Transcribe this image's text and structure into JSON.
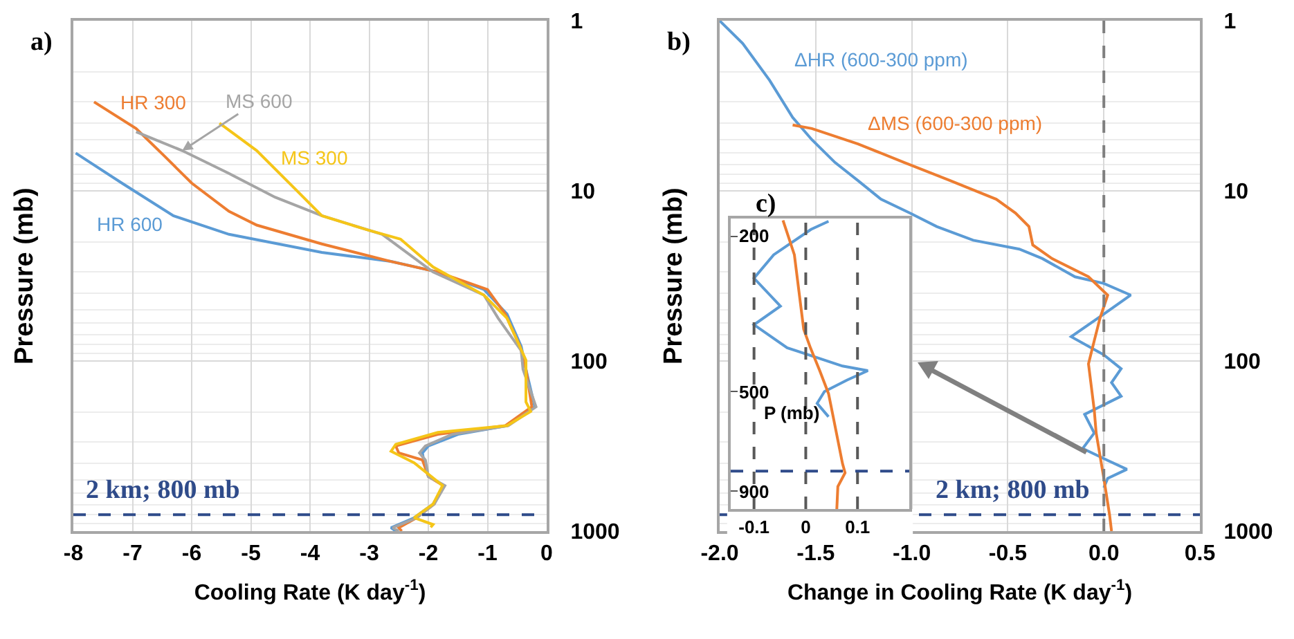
{
  "chart_data": [
    {
      "type": "line",
      "title": "a)",
      "xlabel": "Cooling Rate (K day$^{-1}$)",
      "ylabel": "Pressure (mb)",
      "orientation": "horizontal",
      "log": "y",
      "xlim": [
        -8,
        0
      ],
      "xticks": [
        -8,
        -7,
        -6,
        -5,
        -4,
        -3,
        -2,
        -1,
        0
      ],
      "ylim": [
        1000,
        1
      ],
      "yticks": [
        1,
        10,
        100,
        1000
      ],
      "grid": true,
      "ref_lines": [
        {
          "axis": "y",
          "value": 800,
          "label": "2 km; 800 mb",
          "color": "#2f4b8a",
          "line_style": "dashed"
        }
      ],
      "series": [
        {
          "name": "HR 600",
          "color": "#5b9bd5",
          "x": [
            6,
            9,
            14,
            18,
            23,
            26,
            30,
            38,
            53,
            82,
            112,
            186,
            240,
            270,
            316,
            347,
            382,
            477,
            540,
            693,
            835,
            955,
            1000
          ],
          "values": [
            -7.96,
            -7.18,
            -6.31,
            -5.37,
            -3.8,
            -2.63,
            -1.84,
            -1.06,
            -0.67,
            -0.43,
            -0.35,
            -0.2,
            -0.67,
            -1.5,
            -2.0,
            -2.1,
            -2.08,
            -2.0,
            -1.73,
            -1.92,
            -2.24,
            -2.63,
            -2.55
          ]
        },
        {
          "name": "HR 300",
          "color": "#ed7d31",
          "x": [
            3.0,
            4.3,
            6.2,
            9.0,
            13.2,
            15.9,
            20.5,
            26,
            30,
            38,
            53,
            82,
            112,
            186,
            240,
            270,
            316,
            347,
            382,
            477,
            540,
            693,
            835,
            955,
            1000
          ],
          "values": [
            -7.65,
            -6.94,
            -6.47,
            -6.0,
            -5.37,
            -4.9,
            -3.8,
            -2.63,
            -1.84,
            -1.0,
            -0.7,
            -0.45,
            -0.35,
            -0.25,
            -0.7,
            -1.84,
            -2.55,
            -2.5,
            -2.1,
            -2.0,
            -1.75,
            -1.9,
            -2.2,
            -2.5,
            -2.45
          ]
        },
        {
          "name": "MS 600",
          "color": "#a5a5a5",
          "x": [
            4.5,
            5.8,
            7.9,
            10.9,
            14,
            18,
            30,
            41,
            56,
            87,
            112,
            186,
            240,
            270,
            316,
            347,
            382,
            477,
            540,
            693,
            835,
            955,
            1000
          ],
          "values": [
            -6.94,
            -6.16,
            -5.37,
            -4.59,
            -3.8,
            -2.78,
            -1.92,
            -1.06,
            -0.82,
            -0.43,
            -0.4,
            -0.18,
            -0.65,
            -1.6,
            -2.05,
            -2.15,
            -2.05,
            -2.0,
            -1.72,
            -1.9,
            -2.2,
            -2.6,
            -2.5
          ]
        },
        {
          "name": "MS 300",
          "color": "#f5c518",
          "x": [
            4.0,
            5.8,
            9.6,
            14,
            17,
            19.2,
            28,
            41,
            56,
            99,
            174,
            198,
            240,
            263,
            309,
            339,
            397,
            540,
            693,
            835,
            915,
            950
          ],
          "values": [
            -5.53,
            -4.9,
            -4.27,
            -3.8,
            -3.02,
            -2.47,
            -1.92,
            -1.06,
            -0.67,
            -0.35,
            -0.35,
            -0.27,
            -0.67,
            -1.84,
            -2.55,
            -2.63,
            -2.24,
            -1.76,
            -1.92,
            -2.24,
            -1.92,
            -1.96
          ]
        }
      ]
    },
    {
      "type": "line",
      "title": "b)",
      "xlabel": "Change in Cooling Rate (K day$^{-1}$)",
      "ylabel": "Pressure (mb)",
      "orientation": "horizontal",
      "log": "y",
      "xlim": [
        -2.0,
        0.5
      ],
      "xticks": [
        {
          "value": -2,
          "label": "-2.0"
        },
        -1.5,
        {
          "value": -1,
          "label": "-1.0"
        },
        -0.5,
        {
          "value": 0,
          "label": "0.0"
        },
        0.5
      ],
      "ylim": [
        1000,
        1
      ],
      "yticks": [
        1,
        10,
        100,
        1000
      ],
      "grid": true,
      "ref_lines": [
        {
          "axis": "x",
          "value": 0,
          "color": "#7f7f7f",
          "line_style": "dashed"
        },
        {
          "axis": "y",
          "value": 800,
          "label": "2 km; 800 mb",
          "color": "#2f4b8a",
          "line_style": "dashed"
        }
      ],
      "series": [
        {
          "name": "ΔHR (600-300 ppm)",
          "color": "#5b9bd5",
          "x": [
            1,
            1.36,
            2.24,
            3.7,
            5.0,
            6.8,
            8.7,
            11.2,
            13.5,
            16.2,
            19.5,
            22,
            25,
            32,
            35,
            41,
            53,
            72,
            92,
            111,
            134,
            161,
            206,
            265,
            327,
            384,
            433,
            490,
            556
          ],
          "values": [
            -2.0,
            -1.88,
            -1.74,
            -1.62,
            -1.52,
            -1.4,
            -1.28,
            -1.16,
            -1.01,
            -0.87,
            -0.68,
            -0.44,
            -0.32,
            -0.15,
            0.0,
            0.14,
            0.0,
            -0.17,
            0.0,
            0.09,
            0.04,
            0.09,
            -0.1,
            -0.05,
            -0.11,
            0.02,
            0.12,
            0.02,
            0.0
          ]
        },
        {
          "name": "ΔMS (600-300 ppm)",
          "color": "#ed7d31",
          "x": [
            4.1,
            4.3,
            5.3,
            6.8,
            8.7,
            11.2,
            13.5,
            16.2,
            20.8,
            25,
            32,
            41,
            56,
            76,
            104,
            194,
            265,
            490,
            805,
            1000
          ],
          "values": [
            -1.62,
            -1.52,
            -1.28,
            -1.04,
            -0.8,
            -0.56,
            -0.46,
            -0.39,
            -0.37,
            -0.27,
            -0.08,
            0.02,
            -0.02,
            -0.05,
            -0.08,
            -0.05,
            -0.04,
            0.0,
            0.03,
            0.04
          ]
        }
      ]
    },
    {
      "type": "line",
      "title": "c)",
      "ylabel": "P (mb)",
      "orientation": "horizontal",
      "log": "y",
      "xlim": [
        -0.145,
        0.2
      ],
      "xticks": [
        -0.1,
        0,
        0.1
      ],
      "ylim": [
        1000,
        180
      ],
      "yticks": [
        200,
        500,
        900
      ],
      "ref_lines": [
        {
          "axis": "x",
          "value": -0.1,
          "color": "#595959",
          "line_style": "dashed"
        },
        {
          "axis": "x",
          "value": 0,
          "color": "#595959",
          "line_style": "dashed"
        },
        {
          "axis": "x",
          "value": 0.1,
          "color": "#595959",
          "line_style": "dashed"
        },
        {
          "axis": "y",
          "value": 800,
          "color": "#2f4b8a",
          "line_style": "dashed"
        }
      ],
      "series": [
        {
          "color": "#5b9bd5",
          "x": [
            183,
            192,
            223,
            256,
            302,
            337,
            386,
            430,
            442,
            467,
            500,
            536,
            580
          ],
          "values": [
            0.044,
            0.01,
            -0.062,
            -0.1,
            -0.049,
            -0.1,
            -0.036,
            0.071,
            0.12,
            0.08,
            0.036,
            0.022,
            0.044
          ]
        },
        {
          "color": "#ed7d31",
          "x": [
            182,
            223,
            278,
            346,
            386,
            442,
            506,
            580,
            765,
            808,
            876,
            1000
          ],
          "values": [
            -0.044,
            -0.022,
            -0.013,
            -0.004,
            0.009,
            0.027,
            0.044,
            0.053,
            0.071,
            0.076,
            0.062,
            0.06
          ]
        }
      ]
    }
  ]
}
